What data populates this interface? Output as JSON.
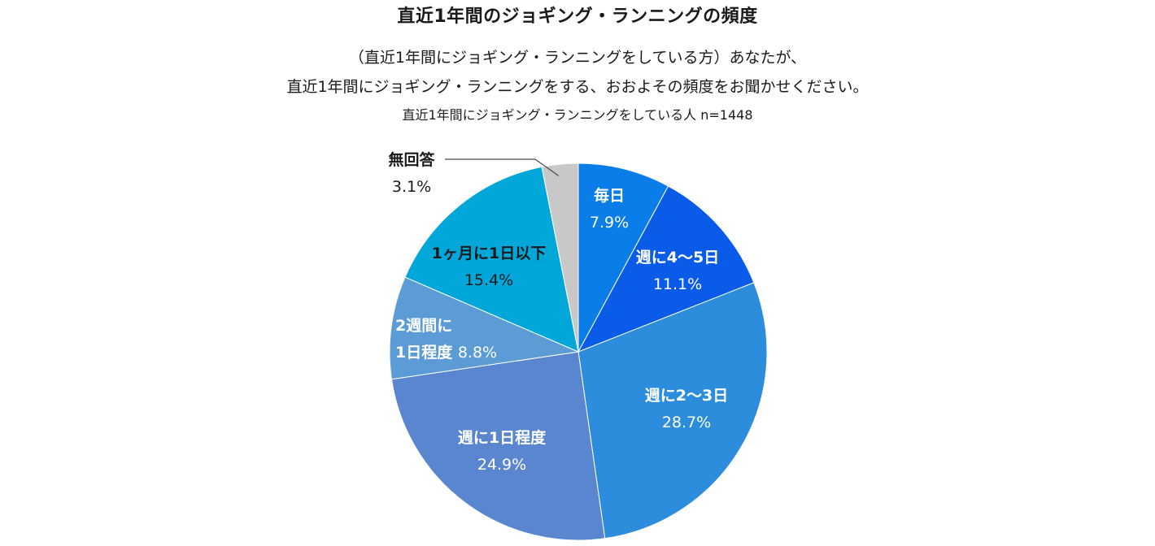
{
  "header": {
    "title": "直近1年間のジョギング・ランニングの頻度",
    "question_line1": "（直近1年間にジョギング・ランニングをしている方）あなたが、",
    "question_line2": "直近1年間にジョギング・ランニングをする、おおよその頻度をお聞かせください。",
    "base_note": "直近1年間にジョギング・ランニングをしている人  n=1448"
  },
  "chart_data": {
    "type": "pie",
    "title": "直近1年間のジョギング・ランニングの頻度",
    "start_angle_deg": 0,
    "direction": "clockwise",
    "slices": [
      {
        "label": "毎日",
        "label_lines": [
          "毎日"
        ],
        "value": 7.9,
        "value_label": "7.9%",
        "color": "#0a7de8",
        "text_color": "#ffffff"
      },
      {
        "label": "週に4〜5日",
        "label_lines": [
          "週に4〜5日"
        ],
        "value": 11.1,
        "value_label": "11.1%",
        "color": "#0a5ce8",
        "text_color": "#ffffff"
      },
      {
        "label": "週に2〜3日",
        "label_lines": [
          "週に2〜3日"
        ],
        "value": 28.7,
        "value_label": "28.7%",
        "color": "#2b8ddc",
        "text_color": "#ffffff"
      },
      {
        "label": "週に1日程度",
        "label_lines": [
          "週に1日程度"
        ],
        "value": 24.9,
        "value_label": "24.9%",
        "color": "#5a86d0",
        "text_color": "#ffffff"
      },
      {
        "label": "2週間に1日程度",
        "label_lines": [
          "2週間に",
          "1日程度"
        ],
        "value": 8.8,
        "value_label": "8.8%",
        "color": "#5b9bd6",
        "text_color": "#ffffff"
      },
      {
        "label": "1ヶ月に1日以下",
        "label_lines": [
          "1ヶ月に1日以下"
        ],
        "value": 15.4,
        "value_label": "15.4%",
        "color": "#00a7d8",
        "text_color": "#1a1a1a"
      },
      {
        "label": "無回答",
        "label_lines": [
          "無回答"
        ],
        "value": 3.1,
        "value_label": "3.1%",
        "color": "#c8c8c8",
        "text_color": "#1a1a1a"
      }
    ]
  }
}
